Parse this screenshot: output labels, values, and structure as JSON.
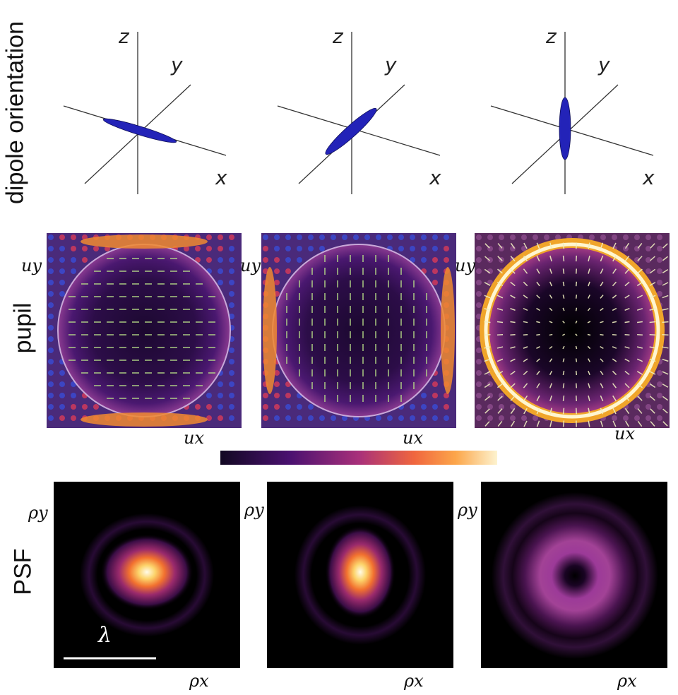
{
  "row_labels": {
    "dipole": "dipole orientation",
    "pupil": "pupil",
    "psf": "PSF"
  },
  "axes": {
    "z": "z",
    "y": "y",
    "x": "x"
  },
  "pupil_axes": [
    {
      "y": "uy",
      "x": "ux"
    },
    {
      "y": "uy",
      "x": "ux"
    },
    {
      "y": "uy",
      "x": "ux"
    }
  ],
  "psf_axes": [
    {
      "y": "ρy",
      "x": "ρx"
    },
    {
      "y": "ρy",
      "x": "ρx"
    },
    {
      "y": "ρy",
      "x": "ρx"
    }
  ],
  "scale_bar_label": "λ",
  "dipoles": [
    {
      "orientation": "x"
    },
    {
      "orientation": "y"
    },
    {
      "orientation": "z"
    }
  ],
  "colors": {
    "dipole": "#1f1fa8",
    "colormap": [
      "#120822",
      "#3b0f6e",
      "#8c2981",
      "#de4968",
      "#fe9f6d",
      "#fcf5c8"
    ]
  }
}
